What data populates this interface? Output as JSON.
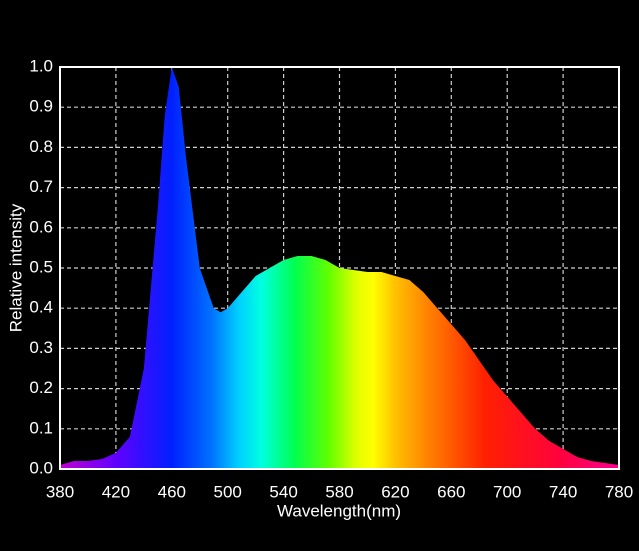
{
  "chart_data": {
    "type": "area",
    "x_label": "Wavelength(nm)",
    "y_label": "Relative intensity",
    "x": [
      380,
      390,
      400,
      410,
      420,
      430,
      440,
      450,
      455,
      460,
      465,
      470,
      480,
      490,
      495,
      500,
      510,
      520,
      530,
      540,
      550,
      560,
      570,
      580,
      590,
      600,
      610,
      620,
      630,
      640,
      650,
      660,
      670,
      680,
      690,
      700,
      710,
      720,
      730,
      740,
      750,
      760,
      770,
      780
    ],
    "values": [
      0.01,
      0.02,
      0.02,
      0.025,
      0.04,
      0.08,
      0.25,
      0.65,
      0.88,
      1.0,
      0.95,
      0.78,
      0.5,
      0.4,
      0.39,
      0.4,
      0.44,
      0.48,
      0.5,
      0.52,
      0.53,
      0.53,
      0.52,
      0.5,
      0.495,
      0.49,
      0.49,
      0.48,
      0.47,
      0.44,
      0.4,
      0.36,
      0.32,
      0.27,
      0.22,
      0.18,
      0.14,
      0.1,
      0.07,
      0.05,
      0.03,
      0.02,
      0.015,
      0.01
    ],
    "xlim": [
      380,
      780
    ],
    "xticks": [
      380,
      420,
      460,
      500,
      540,
      580,
      620,
      660,
      700,
      740,
      780
    ],
    "ylim": [
      0,
      1
    ],
    "yticks": [
      {
        "value": 0,
        "label": "0.0"
      },
      0.1,
      0.2,
      0.3,
      0.4,
      0.5,
      0.6,
      0.7,
      0.8,
      0.9,
      {
        "value": 1,
        "label": "1.0"
      }
    ],
    "grid": true
  }
}
